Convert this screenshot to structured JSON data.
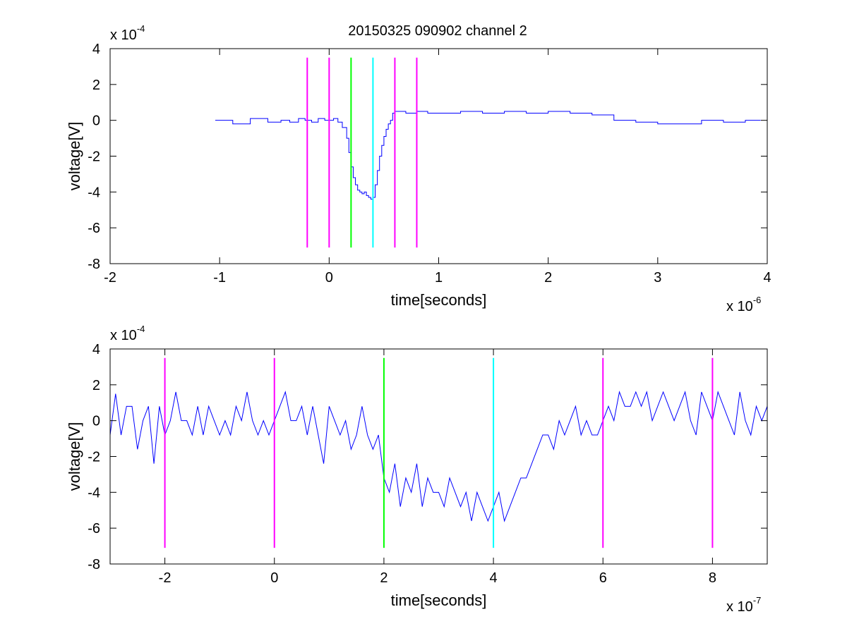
{
  "title": "20150325 090902 channel 2",
  "colors": {
    "trace": "#0000ff",
    "magenta": "#ff00ff",
    "green": "#00ff00",
    "cyan": "#00ffff",
    "axis": "#000000",
    "background": "#ffffff"
  },
  "chart_data": [
    {
      "type": "line",
      "title": "20150325 090902 channel 2",
      "xlabel": "time[seconds]",
      "ylabel": "voltage[V]",
      "x_multiplier": "x 10",
      "x_exponent": "-6",
      "y_multiplier": "x 10",
      "y_exponent": "-4",
      "xlim": [
        -2,
        4
      ],
      "ylim": [
        -8,
        4
      ],
      "x_ticks": [
        -2,
        -1,
        0,
        1,
        2,
        3,
        4
      ],
      "y_ticks": [
        -8,
        -6,
        -4,
        -2,
        0,
        2,
        4
      ],
      "grid": false,
      "trace_style": "stairs",
      "series": [
        {
          "color": "#0000ff",
          "x": [
            -1.04,
            -0.88,
            -0.72,
            -0.56,
            -0.44,
            -0.36,
            -0.28,
            -0.22,
            -0.16,
            -0.1,
            -0.04,
            0.0,
            0.04,
            0.08,
            0.12,
            0.16,
            0.18,
            0.2,
            0.22,
            0.24,
            0.26,
            0.28,
            0.3,
            0.32,
            0.34,
            0.36,
            0.38,
            0.4,
            0.42,
            0.44,
            0.46,
            0.48,
            0.5,
            0.52,
            0.54,
            0.56,
            0.58,
            0.6,
            0.7,
            0.8,
            0.9,
            1.0,
            1.2,
            1.4,
            1.6,
            1.8,
            2.0,
            2.2,
            2.4,
            2.6,
            2.8,
            3.0,
            3.2,
            3.4,
            3.6,
            3.8,
            3.94
          ],
          "y": [
            0.0,
            -0.2,
            0.1,
            -0.1,
            0.0,
            -0.1,
            0.1,
            0.0,
            -0.1,
            0.1,
            0.0,
            0.0,
            0.1,
            -0.1,
            -0.4,
            -1.0,
            -1.8,
            -2.6,
            -3.2,
            -3.6,
            -3.9,
            -4.0,
            -4.1,
            -4.0,
            -4.2,
            -4.3,
            -4.4,
            -4.3,
            -3.6,
            -2.8,
            -2.0,
            -1.4,
            -0.9,
            -0.5,
            -0.2,
            0.0,
            0.4,
            0.5,
            0.4,
            0.5,
            0.4,
            0.4,
            0.5,
            0.4,
            0.5,
            0.4,
            0.5,
            0.4,
            0.3,
            0.0,
            -0.1,
            -0.2,
            -0.2,
            0.0,
            -0.1,
            0.0,
            0.0
          ]
        }
      ],
      "vlines": [
        {
          "x": -0.2,
          "color": "#ff00ff",
          "y_range": [
            -7.1,
            3.5
          ]
        },
        {
          "x": 0.0,
          "color": "#ff00ff",
          "y_range": [
            -7.1,
            3.5
          ]
        },
        {
          "x": 0.2,
          "color": "#00ff00",
          "y_range": [
            -7.1,
            3.5
          ]
        },
        {
          "x": 0.4,
          "color": "#00ffff",
          "y_range": [
            -7.1,
            3.5
          ]
        },
        {
          "x": 0.6,
          "color": "#ff00ff",
          "y_range": [
            -7.1,
            3.5
          ]
        },
        {
          "x": 0.8,
          "color": "#ff00ff",
          "y_range": [
            -7.1,
            3.5
          ]
        }
      ]
    },
    {
      "type": "line",
      "xlabel": "time[seconds]",
      "ylabel": "voltage[V]",
      "x_multiplier": "x 10",
      "x_exponent": "-7",
      "y_multiplier": "x 10",
      "y_exponent": "-4",
      "xlim": [
        -3,
        9
      ],
      "ylim": [
        -8,
        4
      ],
      "x_ticks": [
        -2,
        0,
        2,
        4,
        6,
        8
      ],
      "y_ticks": [
        -8,
        -6,
        -4,
        -2,
        0,
        2,
        4
      ],
      "grid": false,
      "trace_style": "line",
      "series": [
        {
          "color": "#0000ff",
          "x": [
            -3.0,
            -2.9,
            -2.8,
            -2.7,
            -2.6,
            -2.5,
            -2.4,
            -2.3,
            -2.2,
            -2.1,
            -2.0,
            -1.9,
            -1.8,
            -1.7,
            -1.6,
            -1.5,
            -1.4,
            -1.3,
            -1.2,
            -1.1,
            -1.0,
            -0.9,
            -0.8,
            -0.7,
            -0.6,
            -0.5,
            -0.4,
            -0.3,
            -0.2,
            -0.1,
            0.0,
            0.1,
            0.2,
            0.3,
            0.4,
            0.5,
            0.6,
            0.7,
            0.8,
            0.9,
            1.0,
            1.1,
            1.2,
            1.3,
            1.4,
            1.5,
            1.6,
            1.7,
            1.8,
            1.9,
            2.0,
            2.1,
            2.2,
            2.3,
            2.4,
            2.5,
            2.6,
            2.7,
            2.8,
            2.9,
            3.0,
            3.1,
            3.2,
            3.3,
            3.4,
            3.5,
            3.6,
            3.7,
            3.8,
            3.9,
            4.0,
            4.1,
            4.2,
            4.3,
            4.4,
            4.5,
            4.6,
            4.7,
            4.8,
            4.9,
            5.0,
            5.1,
            5.2,
            5.3,
            5.4,
            5.5,
            5.6,
            5.7,
            5.8,
            5.9,
            6.0,
            6.1,
            6.2,
            6.3,
            6.4,
            6.5,
            6.6,
            6.7,
            6.8,
            6.9,
            7.0,
            7.1,
            7.2,
            7.3,
            7.4,
            7.5,
            7.6,
            7.7,
            7.8,
            7.9,
            8.0,
            8.1,
            8.2,
            8.3,
            8.4,
            8.5,
            8.6,
            8.7,
            8.8,
            8.9,
            9.0
          ],
          "y": [
            -0.8,
            1.5,
            -0.8,
            0.8,
            0.8,
            -1.6,
            0.0,
            0.8,
            -2.4,
            0.8,
            -0.8,
            0.0,
            1.6,
            0.0,
            0.0,
            -0.8,
            0.8,
            -0.8,
            0.8,
            0.0,
            -0.8,
            0.0,
            -0.8,
            0.8,
            0.0,
            1.6,
            0.0,
            -0.8,
            0.0,
            -0.8,
            0.0,
            0.8,
            1.6,
            0.0,
            0.0,
            0.8,
            -0.8,
            0.8,
            -0.8,
            -2.4,
            0.8,
            0.0,
            -0.8,
            0.0,
            -1.6,
            -0.8,
            0.8,
            -0.8,
            -1.6,
            -0.8,
            -3.2,
            -4.0,
            -2.4,
            -4.8,
            -3.2,
            -4.0,
            -2.4,
            -4.8,
            -3.2,
            -4.0,
            -4.0,
            -4.8,
            -3.2,
            -4.0,
            -4.8,
            -4.0,
            -5.6,
            -4.0,
            -4.8,
            -5.6,
            -4.8,
            -4.0,
            -5.6,
            -4.8,
            -4.0,
            -3.2,
            -3.2,
            -2.4,
            -1.6,
            -0.8,
            -0.8,
            -1.6,
            0.0,
            -0.8,
            0.0,
            0.8,
            -0.8,
            0.0,
            -0.8,
            -0.8,
            0.0,
            0.8,
            0.0,
            1.6,
            0.8,
            0.8,
            1.6,
            0.8,
            1.6,
            0.0,
            0.8,
            1.6,
            0.8,
            0.0,
            0.8,
            1.6,
            0.0,
            -0.8,
            1.6,
            0.8,
            0.0,
            1.6,
            0.8,
            0.0,
            -0.8,
            1.6,
            0.0,
            -0.8,
            0.8,
            0.0,
            0.8
          ]
        }
      ],
      "vlines": [
        {
          "x": -2,
          "color": "#ff00ff",
          "y_range": [
            -7.1,
            3.5
          ]
        },
        {
          "x": 0,
          "color": "#ff00ff",
          "y_range": [
            -7.1,
            3.5
          ]
        },
        {
          "x": 2,
          "color": "#00ff00",
          "y_range": [
            -7.1,
            3.5
          ]
        },
        {
          "x": 4,
          "color": "#00ffff",
          "y_range": [
            -7.1,
            3.5
          ]
        },
        {
          "x": 6,
          "color": "#ff00ff",
          "y_range": [
            -7.1,
            3.5
          ]
        },
        {
          "x": 8,
          "color": "#ff00ff",
          "y_range": [
            -7.1,
            3.5
          ]
        }
      ]
    }
  ]
}
